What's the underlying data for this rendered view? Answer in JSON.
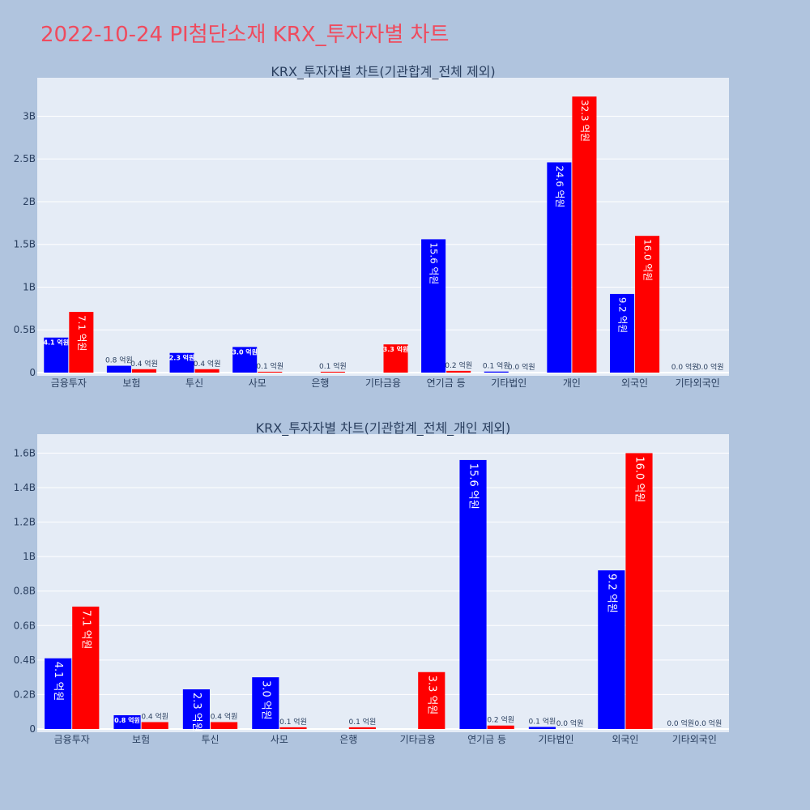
{
  "page": {
    "title": "2022-10-24 PI첨단소재 KRX_투자자별 차트",
    "background": "#b0c4de",
    "title_color": "#ef4b5e"
  },
  "colors": {
    "plot_bg": "#e5ecf6",
    "grid": "#ffffff",
    "series_a": "#0000ff",
    "series_b": "#ff0000",
    "axis_text": "#2a3f5f"
  },
  "chart_data": [
    {
      "type": "bar",
      "title": "KRX_투자자별 차트(기관합계_전체 제외)",
      "categories": [
        "금융투자",
        "보험",
        "투신",
        "사모",
        "은행",
        "기타금융",
        "연기금 등",
        "기타법인",
        "개인",
        "외국인",
        "기타외국인"
      ],
      "ylim": [
        0,
        3.45
      ],
      "yticks": [
        0,
        0.5,
        1,
        1.5,
        2,
        2.5,
        3
      ],
      "ytick_labels": [
        "0",
        "0.5B",
        "1B",
        "1.5B",
        "2B",
        "2.5B",
        "3B"
      ],
      "series": [
        {
          "name": "series_a",
          "values": [
            0.41,
            0.08,
            0.23,
            0.3,
            0.0,
            0.0,
            1.56,
            0.012,
            2.46,
            0.92,
            0.0
          ],
          "labels": [
            "4.1 억원",
            "0.8 억원",
            "2.3 억원",
            "3.0 억원",
            "",
            "",
            "15.6 억원",
            "0.1 억원",
            "24.6 억원",
            "9.2 억원",
            "0.0 억원"
          ]
        },
        {
          "name": "series_b",
          "values": [
            0.71,
            0.04,
            0.04,
            0.01,
            0.01,
            0.33,
            0.02,
            0.0,
            3.23,
            1.6,
            0.0
          ],
          "labels": [
            "7.1 억원",
            "0.4 억원",
            "0.4 억원",
            "0.1 억원",
            "0.1 억원",
            "3.3 억원",
            "0.2 억원",
            "0.0 억원",
            "32.3 억원",
            "16.0 억원",
            "0.0 억원"
          ]
        }
      ]
    },
    {
      "type": "bar",
      "title": "KRX_투자자별 차트(기관합계_전체_개인 제외)",
      "categories": [
        "금융투자",
        "보험",
        "투신",
        "사모",
        "은행",
        "기타금융",
        "연기금 등",
        "기타법인",
        "외국인",
        "기타외국인"
      ],
      "ylim": [
        0,
        1.71
      ],
      "yticks": [
        0,
        0.2,
        0.4,
        0.6,
        0.8,
        1,
        1.2,
        1.4,
        1.6
      ],
      "ytick_labels": [
        "0",
        "0.2B",
        "0.4B",
        "0.6B",
        "0.8B",
        "1B",
        "1.2B",
        "1.4B",
        "1.6B"
      ],
      "series": [
        {
          "name": "series_a",
          "values": [
            0.41,
            0.08,
            0.23,
            0.3,
            0.0,
            0.0,
            1.56,
            0.012,
            0.92,
            0.0
          ],
          "labels": [
            "4.1 억원",
            "0.8 억원",
            "2.3 억원",
            "3.0 억원",
            "",
            "",
            "15.6 억원",
            "0.1 억원",
            "9.2 억원",
            "0.0 억원"
          ]
        },
        {
          "name": "series_b",
          "values": [
            0.71,
            0.04,
            0.04,
            0.01,
            0.01,
            0.33,
            0.02,
            0.0,
            1.6,
            0.0
          ],
          "labels": [
            "7.1 억원",
            "0.4 억원",
            "0.4 억원",
            "0.1 억원",
            "0.1 억원",
            "3.3 억원",
            "0.2 억원",
            "0.0 억원",
            "16.0 억원",
            "0.0 억원"
          ]
        }
      ]
    }
  ]
}
